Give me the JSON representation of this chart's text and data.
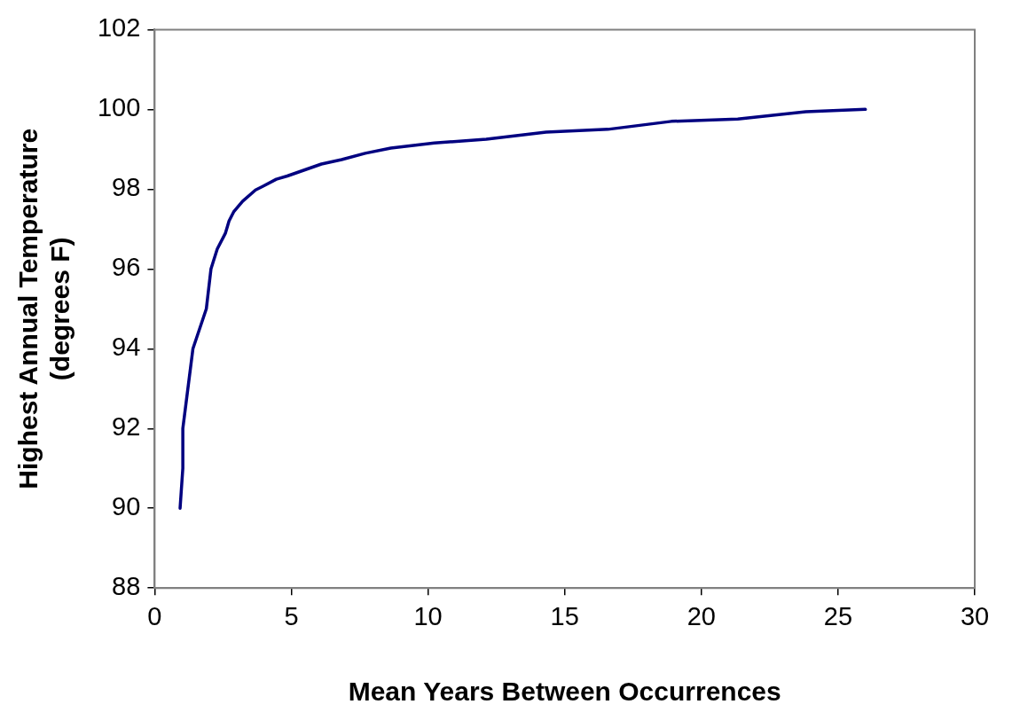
{
  "chart_data": {
    "type": "line",
    "xlabel": "Mean Years Between Occurrences",
    "ylabel": "Highest Annual Temperature\n(degrees F)",
    "x": [
      0.93,
      1.03,
      1.03,
      1.4,
      1.89,
      2.06,
      2.29,
      2.59,
      2.72,
      2.89,
      3.22,
      3.69,
      3.95,
      4.45,
      4.85,
      6.1,
      6.84,
      7.7,
      8.64,
      10.23,
      12.13,
      14.32,
      16.58,
      18.9,
      21.33,
      23.82,
      26.0
    ],
    "series": [
      {
        "color": "#000080",
        "values": [
          90.0,
          91.0,
          92.0,
          94.0,
          95.0,
          96.0,
          96.5,
          96.9,
          97.2,
          97.43,
          97.7,
          97.98,
          98.07,
          98.25,
          98.33,
          98.63,
          98.74,
          98.9,
          99.03,
          99.16,
          99.25,
          99.43,
          99.5,
          99.7,
          99.76,
          99.94,
          100.0
        ]
      }
    ],
    "xlim": [
      0,
      30
    ],
    "xticks": [
      0,
      5,
      10,
      15,
      20,
      25,
      30
    ],
    "ylim": [
      88,
      102
    ],
    "yticks": [
      88,
      90,
      92,
      94,
      96,
      98,
      100,
      102
    ],
    "grid": false,
    "legend": false,
    "marker": "none",
    "line_style": "solid"
  }
}
